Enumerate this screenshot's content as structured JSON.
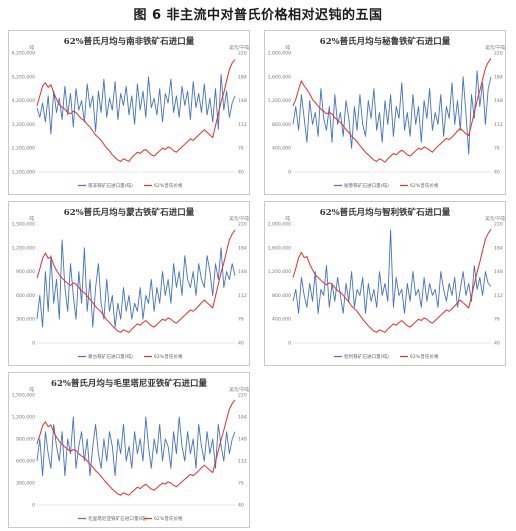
{
  "figure_title": "图 6 非主流中对普氏价格相对迟钝的五国",
  "colors": {
    "import": "#4472c4",
    "price": "#e0312a"
  },
  "legend": {
    "import_suffix": "进口量(吨)",
    "price": "62%普氏价格"
  },
  "watermark": "",
  "chart_data": [
    {
      "type": "line",
      "title": "62%普氏月均与南非铁矿石进口量",
      "left_unit": "吨",
      "right_unit": "美元/干吨",
      "left_ticks": [
        "1,200,000",
        "2,200,000",
        "3,200,000",
        "4,200,000",
        "5,200,000",
        "6,200,000"
      ],
      "right_ticks": [
        "40",
        "76",
        "112",
        "148",
        "184",
        "220"
      ],
      "ylim_left": [
        1200000,
        6200000
      ],
      "ylim_right": [
        40,
        220
      ],
      "series": [
        {
          "name": "南非铁矿石进口量(吨)",
          "axis": "left",
          "values": [
            3900000,
            3500000,
            4100000,
            3300000,
            4400000,
            2800000,
            4600000,
            3700000,
            4300000,
            3400000,
            4800000,
            3600000,
            4500000,
            3100000,
            4700000,
            3800000,
            4200000,
            3300000,
            4900000,
            3900000,
            4400000,
            2900000,
            4600000,
            3700000,
            5100000,
            3500000,
            4300000,
            3800000,
            5000000,
            3400000,
            4500000,
            4000000,
            4800000,
            3600000,
            4400000,
            3200000,
            4900000,
            3800000,
            4600000,
            3500000,
            5200000,
            3900000,
            4300000,
            3600000,
            4700000,
            3300000,
            4500000,
            4100000,
            5100000,
            3700000,
            4400000,
            3500000,
            4800000,
            4000000,
            4600000,
            3400000,
            5000000,
            3900000,
            4500000,
            3700000,
            4900000,
            3600000,
            4300000,
            3300000,
            4700000,
            3000000,
            5300000,
            3800000,
            4600000,
            3500000,
            4100000,
            4400000
          ]
        },
        {
          "name": "62%普氏价格",
          "axis": "right",
          "values": [
            140,
            155,
            170,
            175,
            168,
            172,
            160,
            150,
            142,
            138,
            135,
            130,
            128,
            132,
            130,
            125,
            120,
            118,
            112,
            108,
            102,
            96,
            92,
            88,
            82,
            76,
            72,
            66,
            62,
            58,
            56,
            60,
            58,
            56,
            62,
            66,
            70,
            68,
            72,
            74,
            70,
            66,
            64,
            68,
            72,
            76,
            74,
            78,
            76,
            72,
            70,
            74,
            78,
            82,
            86,
            90,
            88,
            92,
            96,
            100,
            104,
            100,
            96,
            92,
            110,
            128,
            146,
            160,
            178,
            195,
            205,
            210
          ]
        }
      ]
    },
    {
      "type": "line",
      "title": "62%普氏月均与秘鲁铁矿石进口量",
      "left_unit": "吨",
      "right_unit": "美元/干吨",
      "left_ticks": [
        "0",
        "400,000",
        "800,000",
        "1,200,000",
        "1,600,000",
        "2,000,000"
      ],
      "right_ticks": [
        "40",
        "76",
        "112",
        "148",
        "184",
        "220"
      ],
      "ylim_left": [
        0,
        2000000
      ],
      "ylim_right": [
        40,
        220
      ],
      "series": [
        {
          "name": "秘鲁铁矿石进口量(吨)",
          "axis": "left",
          "values": [
            800000,
            1100000,
            700000,
            1300000,
            900000,
            500000,
            1200000,
            800000,
            1000000,
            600000,
            1400000,
            900000,
            700000,
            1100000,
            500000,
            1300000,
            800000,
            1000000,
            600000,
            1200000,
            900000,
            400000,
            1100000,
            700000,
            1300000,
            800000,
            600000,
            1200000,
            900000,
            1400000,
            700000,
            1000000,
            500000,
            1200000,
            800000,
            1300000,
            600000,
            1100000,
            900000,
            1500000,
            700000,
            1000000,
            600000,
            1300000,
            800000,
            1100000,
            500000,
            1200000,
            900000,
            1400000,
            700000,
            1000000,
            800000,
            1300000,
            600000,
            1100000,
            900000,
            1500000,
            800000,
            1200000,
            700000,
            1600000,
            1000000,
            300000,
            1300000,
            900000,
            1700000,
            1100000,
            1500000,
            800000,
            1400000,
            1600000
          ]
        },
        {
          "name": "62%普氏价格",
          "axis": "right",
          "values": [
            140,
            150,
            165,
            178,
            170,
            165,
            158,
            150,
            145,
            140,
            135,
            132,
            128,
            130,
            128,
            122,
            118,
            115,
            110,
            104,
            100,
            94,
            90,
            86,
            80,
            75,
            70,
            66,
            62,
            58,
            56,
            60,
            58,
            55,
            60,
            64,
            68,
            66,
            70,
            73,
            70,
            66,
            64,
            68,
            72,
            76,
            74,
            78,
            76,
            73,
            70,
            75,
            79,
            83,
            87,
            91,
            89,
            93,
            97,
            102,
            106,
            102,
            98,
            95,
            112,
            130,
            148,
            163,
            180,
            197,
            206,
            212
          ]
        }
      ]
    },
    {
      "type": "line",
      "title": "62%普氏月均与蒙古铁矿石进口量",
      "left_unit": "吨",
      "right_unit": "美元/干吨",
      "left_ticks": [
        "0",
        "300,000",
        "600,000",
        "900,000",
        "1,200,000",
        "1,500,000"
      ],
      "right_ticks": [
        "40",
        "76",
        "112",
        "148",
        "184",
        "220"
      ],
      "ylim_left": [
        0,
        1500000
      ],
      "ylim_right": [
        40,
        220
      ],
      "series": [
        {
          "name": "蒙古铁矿石进口量(吨)",
          "axis": "left",
          "values": [
            300000,
            600000,
            200000,
            900000,
            400000,
            1100000,
            500000,
            800000,
            300000,
            1300000,
            700000,
            400000,
            1000000,
            600000,
            300000,
            900000,
            500000,
            1200000,
            400000,
            800000,
            200000,
            700000,
            1000000,
            500000,
            300000,
            800000,
            400000,
            600000,
            200000,
            500000,
            300000,
            700000,
            400000,
            600000,
            300000,
            500000,
            400000,
            700000,
            300000,
            600000,
            500000,
            800000,
            400000,
            700000,
            500000,
            900000,
            600000,
            800000,
            500000,
            1000000,
            700000,
            900000,
            600000,
            1100000,
            800000,
            700000,
            900000,
            600000,
            1000000,
            800000,
            700000,
            1100000,
            900000,
            600000,
            1000000,
            800000,
            1200000,
            700000,
            900000,
            800000,
            1000000,
            850000
          ]
        },
        {
          "name": "62%普氏价格",
          "axis": "right",
          "values": [
            138,
            152,
            168,
            176,
            168,
            170,
            158,
            150,
            143,
            138,
            134,
            130,
            127,
            131,
            129,
            124,
            119,
            116,
            111,
            106,
            101,
            95,
            91,
            87,
            81,
            75,
            71,
            66,
            62,
            58,
            56,
            60,
            58,
            56,
            61,
            65,
            69,
            67,
            71,
            74,
            70,
            66,
            64,
            68,
            72,
            76,
            74,
            78,
            76,
            72,
            70,
            74,
            78,
            82,
            86,
            90,
            88,
            92,
            96,
            101,
            105,
            101,
            97,
            93,
            111,
            129,
            147,
            161,
            179,
            196,
            205,
            211
          ]
        }
      ]
    },
    {
      "type": "line",
      "title": "62%普氏月均与智利铁矿石进口量",
      "left_unit": "吨",
      "right_unit": "美元/干吨",
      "left_ticks": [
        "0",
        "400,000",
        "800,000",
        "1,200,000",
        "1,600,000",
        "2,000,000"
      ],
      "right_ticks": [
        "40",
        "76",
        "112",
        "148",
        "184",
        "220"
      ],
      "ylim_left": [
        0,
        2000000
      ],
      "ylim_right": [
        40,
        220
      ],
      "series": [
        {
          "name": "智利铁矿石进口量(吨)",
          "axis": "left",
          "values": [
            700000,
            900000,
            500000,
            1100000,
            800000,
            600000,
            1000000,
            700000,
            1200000,
            500000,
            900000,
            800000,
            1300000,
            600000,
            1000000,
            700000,
            1100000,
            800000,
            500000,
            1000000,
            700000,
            1200000,
            600000,
            900000,
            800000,
            1100000,
            500000,
            1000000,
            700000,
            900000,
            600000,
            1200000,
            800000,
            1000000,
            700000,
            1900000,
            600000,
            1100000,
            800000,
            900000,
            500000,
            1000000,
            700000,
            1200000,
            800000,
            900000,
            600000,
            1100000,
            700000,
            1000000,
            800000,
            900000,
            600000,
            1200000,
            900000,
            700000,
            1000000,
            800000,
            1100000,
            600000,
            900000,
            1200000,
            800000,
            1000000,
            700000,
            1300000,
            900000,
            1100000,
            800000,
            1200000,
            1000000,
            950000
          ]
        },
        {
          "name": "62%普氏价格",
          "axis": "right",
          "values": [
            139,
            153,
            169,
            177,
            169,
            171,
            159,
            151,
            143,
            139,
            135,
            131,
            128,
            131,
            129,
            124,
            119,
            117,
            112,
            107,
            102,
            96,
            92,
            88,
            82,
            76,
            71,
            66,
            62,
            58,
            56,
            60,
            58,
            56,
            61,
            65,
            69,
            67,
            71,
            74,
            70,
            66,
            64,
            68,
            72,
            76,
            74,
            78,
            76,
            72,
            70,
            74,
            78,
            82,
            86,
            90,
            88,
            92,
            96,
            101,
            105,
            101,
            97,
            93,
            111,
            129,
            147,
            162,
            180,
            197,
            206,
            212
          ]
        }
      ]
    },
    {
      "type": "line",
      "title": "62%普氏月均与毛里塔尼亚铁矿石进口量",
      "left_unit": "吨",
      "right_unit": "美元/干吨",
      "left_ticks": [
        "0",
        "300,000",
        "600,000",
        "900,000",
        "1,200,000",
        "1,500,000"
      ],
      "right_ticks": [
        "40",
        "76",
        "112",
        "148",
        "184",
        "220"
      ],
      "ylim_left": [
        0,
        1500000
      ],
      "ylim_right": [
        40,
        220
      ],
      "series": [
        {
          "name": "毛里塔尼亚铁矿石进口量(吨)",
          "axis": "left",
          "values": [
            600000,
            900000,
            400000,
            1000000,
            700000,
            500000,
            1100000,
            800000,
            600000,
            1000000,
            400000,
            900000,
            700000,
            1200000,
            500000,
            800000,
            1000000,
            600000,
            900000,
            400000,
            800000,
            1100000,
            700000,
            500000,
            900000,
            600000,
            1000000,
            800000,
            400000,
            900000,
            700000,
            1100000,
            600000,
            800000,
            500000,
            1000000,
            700000,
            900000,
            600000,
            1200000,
            800000,
            500000,
            900000,
            700000,
            1100000,
            600000,
            900000,
            800000,
            500000,
            1000000,
            700000,
            1200000,
            800000,
            600000,
            1000000,
            700000,
            900000,
            500000,
            1100000,
            800000,
            600000,
            1000000,
            700000,
            900000,
            500000,
            1100000,
            800000,
            600000,
            1000000,
            700000,
            900000,
            1000000
          ]
        },
        {
          "name": "62%普氏价格",
          "axis": "right",
          "values": [
            140,
            154,
            170,
            176,
            168,
            171,
            160,
            151,
            144,
            139,
            135,
            131,
            128,
            131,
            129,
            124,
            120,
            117,
            112,
            107,
            102,
            96,
            92,
            87,
            81,
            76,
            71,
            66,
            62,
            58,
            56,
            60,
            58,
            56,
            61,
            65,
            69,
            67,
            71,
            74,
            70,
            66,
            64,
            68,
            72,
            76,
            74,
            78,
            76,
            72,
            70,
            74,
            78,
            82,
            86,
            90,
            88,
            92,
            96,
            101,
            105,
            101,
            97,
            93,
            111,
            129,
            147,
            162,
            180,
            197,
            206,
            212
          ]
        }
      ]
    }
  ]
}
